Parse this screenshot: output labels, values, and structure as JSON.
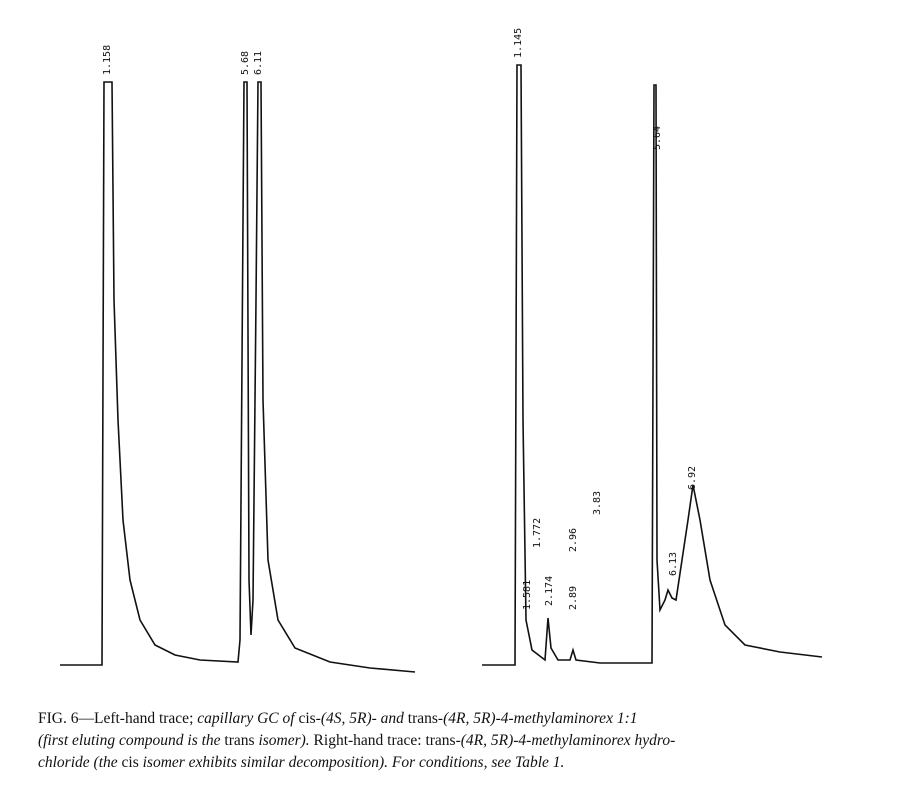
{
  "figure": {
    "left_trace": {
      "peaks": [
        "1.158",
        "5.68",
        "6.11"
      ]
    },
    "right_trace": {
      "peaks": [
        "1.145",
        "1.581",
        "1.772",
        "2.174",
        "2.89",
        "2.96",
        "3.83",
        "5.64",
        "6.13",
        "6.92"
      ]
    }
  },
  "caption": {
    "lines": [
      [
        {
          "text": "FIG. 6—Left-hand trace; ",
          "italic": false
        },
        {
          "text": "capillary GC of ",
          "italic": true
        },
        {
          "text": "cis-",
          "italic": false
        },
        {
          "text": "(4S, 5R)- and ",
          "italic": true
        },
        {
          "text": "trans-",
          "italic": false
        },
        {
          "text": "(4R, 5R)-4-methylaminorex 1:1",
          "italic": true
        }
      ],
      [
        {
          "text": "(first eluting compound is the ",
          "italic": true
        },
        {
          "text": "trans ",
          "italic": false
        },
        {
          "text": "isomer). ",
          "italic": true
        },
        {
          "text": "Right-hand trace: trans-",
          "italic": false
        },
        {
          "text": "(4R, 5R)-4-methylaminorex hydro-",
          "italic": true
        }
      ],
      [
        {
          "text": "chloride (the ",
          "italic": true
        },
        {
          "text": "cis ",
          "italic": false
        },
        {
          "text": "isomer exhibits similar decomposition). For conditions, see Table 1.",
          "italic": true
        }
      ]
    ]
  }
}
